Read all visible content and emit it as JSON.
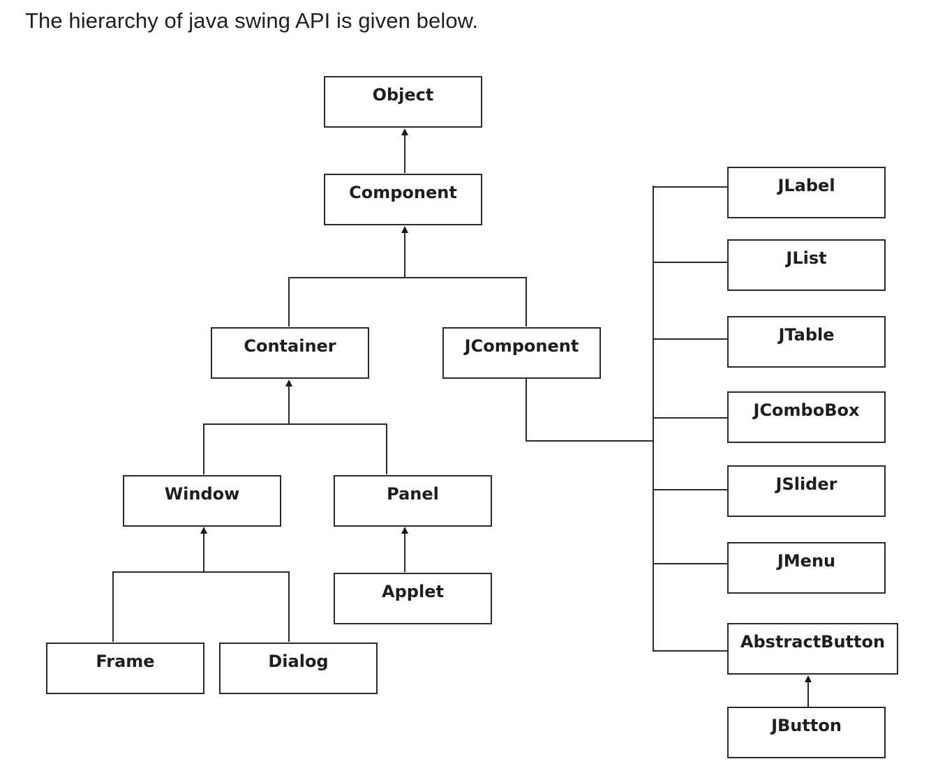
{
  "intro": "The hierarchy of java swing API is given below.",
  "nodes": {
    "object": "Object",
    "component": "Component",
    "container": "Container",
    "jcomponent": "JComponent",
    "window": "Window",
    "panel": "Panel",
    "applet": "Applet",
    "frame": "Frame",
    "dialog": "Dialog",
    "jlabel": "JLabel",
    "jlist": "JList",
    "jtable": "JTable",
    "jcombobox": "JComboBox",
    "jslider": "JSlider",
    "jmenu": "JMenu",
    "abstractbutton": "AbstractButton",
    "jbutton": "JButton"
  }
}
